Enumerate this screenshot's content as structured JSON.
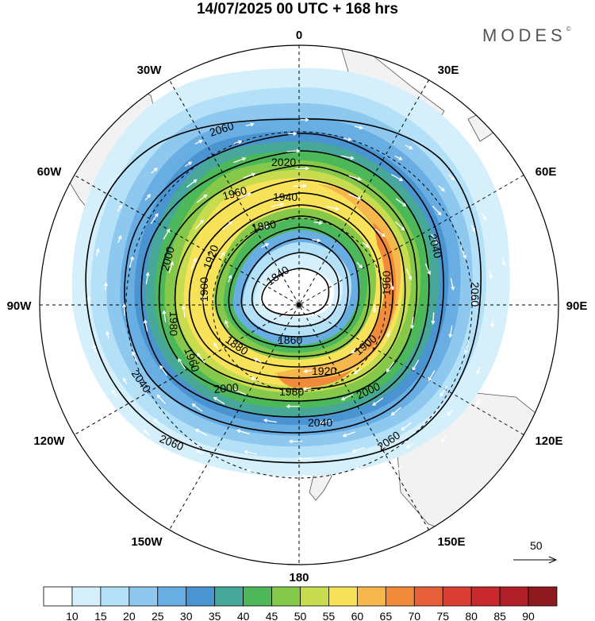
{
  "header": {
    "title": "14/07/2025  00 UTC  + 168 hrs",
    "brand": "MODES",
    "brand_mark": "©"
  },
  "map": {
    "projection": "polar stereographic (south pole)",
    "longitude_labels": [
      {
        "text": "0",
        "lon": 0
      },
      {
        "text": "30E",
        "lon": 30
      },
      {
        "text": "60E",
        "lon": 60
      },
      {
        "text": "90E",
        "lon": 90
      },
      {
        "text": "120E",
        "lon": 120
      },
      {
        "text": "150E",
        "lon": 150
      },
      {
        "text": "180",
        "lon": 180
      },
      {
        "text": "150W",
        "lon": -150
      },
      {
        "text": "120W",
        "lon": -120
      },
      {
        "text": "90W",
        "lon": -90
      },
      {
        "text": "60W",
        "lon": -60
      },
      {
        "text": "30W",
        "lon": -30
      }
    ],
    "contour_labels": [
      "2060",
      "2020",
      "1960",
      "1940",
      "1880",
      "1920",
      "2000",
      "1980",
      "1900",
      "1840",
      "1860",
      "2040",
      "2060",
      "1960",
      "1900",
      "1920",
      "1980",
      "2000",
      "2040",
      "2060",
      "2060",
      "2040",
      "1960",
      "1880",
      "2000"
    ],
    "vector_reference": "50"
  },
  "colorbar": {
    "tick_labels": [
      "10",
      "15",
      "20",
      "25",
      "30",
      "35",
      "40",
      "45",
      "50",
      "55",
      "60",
      "65",
      "70",
      "75",
      "80",
      "85",
      "90"
    ],
    "colors": [
      "#ffffff",
      "#d6f0fb",
      "#b4e1f7",
      "#8ec8ef",
      "#68aee3",
      "#4a94d2",
      "#47a89a",
      "#4cb85a",
      "#86c94a",
      "#c8dc50",
      "#f7e25a",
      "#f6b84c",
      "#f28a3c",
      "#e8603a",
      "#dc3e34",
      "#c8282e",
      "#b01e28",
      "#8e1a20"
    ]
  }
}
